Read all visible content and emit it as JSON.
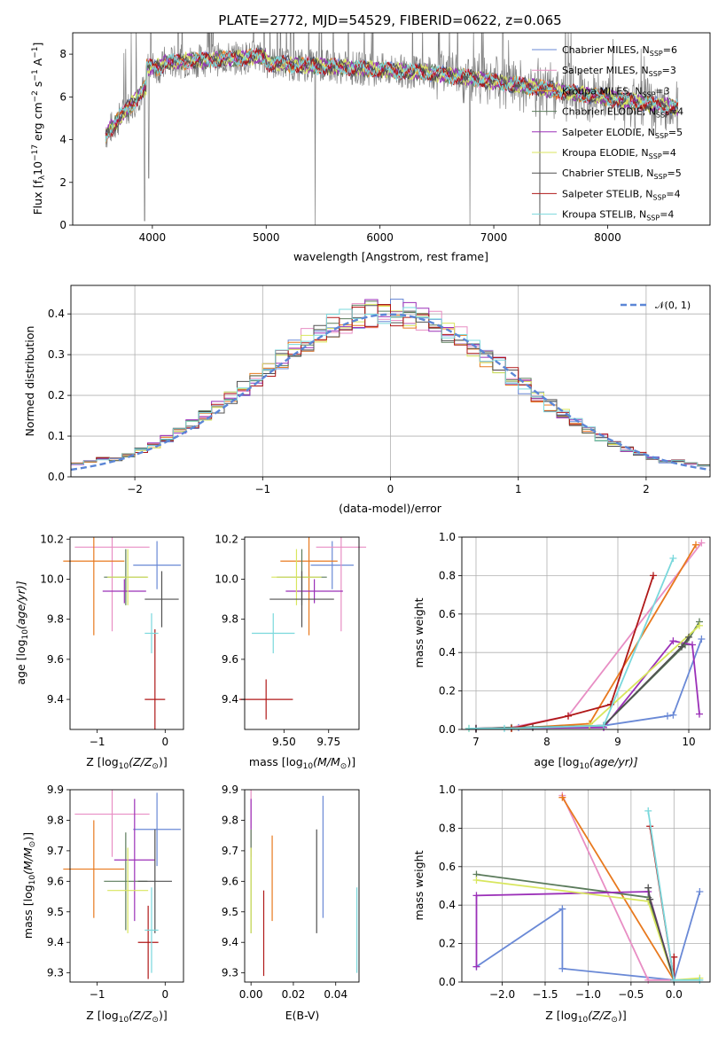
{
  "chart_data": [
    {
      "id": "spectrum",
      "type": "line",
      "title": "PLATE=2772, MJD=54529, FIBERID=0622, z=0.065",
      "xlabel": "wavelength [Angstrom, rest frame]",
      "ylabel": "Flux [f",
      "ylabel_rest": "10",
      "ylabel_exp1": "−17",
      "ylabel_unit": " erg cm",
      "ylabel_exp2": "−2",
      "ylabel_unit2": " s",
      "ylabel_exp3": "−1",
      "ylabel_unit3": " A",
      "ylabel_exp4": "−1",
      "ylabel_close": "]",
      "xlim": [
        3300,
        8900
      ],
      "ylim": [
        0,
        9
      ],
      "xticks": [
        "4000",
        "5000",
        "6000",
        "7000",
        "8000"
      ],
      "yticks": [
        "0",
        "2",
        "4",
        "6",
        "8"
      ],
      "observed_color": "#808080",
      "series": [
        {
          "name": "Chabrier MILES, N",
          "sub": "SSP",
          "n": "=6",
          "color": "#6a89d6"
        },
        {
          "name": "Salpeter MILES, N",
          "sub": "SSP",
          "n": "=3",
          "color": "#e88ec4"
        },
        {
          "name": "Kroupa MILES, N",
          "sub": "SSP",
          "n": "=3",
          "color": "#e8791e"
        },
        {
          "name": "Chabrier ELODIE, N",
          "sub": "SSP",
          "n": "=4",
          "color": "#5b7b5b"
        },
        {
          "name": "Salpeter ELODIE, N",
          "sub": "SSP",
          "n": "=5",
          "color": "#9b30b8"
        },
        {
          "name": "Kroupa ELODIE, N",
          "sub": "SSP",
          "n": "=4",
          "color": "#d8e65e"
        },
        {
          "name": "Chabrier STELIB, N",
          "sub": "SSP",
          "n": "=5",
          "color": "#505050"
        },
        {
          "name": "Salpeter STELIB, N",
          "sub": "SSP",
          "n": "=4",
          "color": "#b01818"
        },
        {
          "name": "Kroupa STELIB, N",
          "sub": "SSP",
          "n": "=4",
          "color": "#7ad8dc"
        }
      ]
    },
    {
      "id": "residuals",
      "type": "histogram",
      "xlabel": "(data-model)/error",
      "ylabel": "Normed distribution",
      "legend": "𝒩(0, 1)",
      "legend_placement": "top-right",
      "xlim": [
        -2.5,
        2.5
      ],
      "ylim": [
        0,
        0.47
      ],
      "xticks": [
        "−2",
        "−1",
        "0",
        "1",
        "2"
      ],
      "yticks": [
        "0.0",
        "0.1",
        "0.2",
        "0.3",
        "0.4"
      ],
      "gaussian": {
        "mu": 0,
        "sigma": 1,
        "color": "#5b86d6"
      },
      "grid": true
    },
    {
      "id": "age-vs-Z",
      "type": "errorbar",
      "xlabel": "Z [log",
      "xlabel_sub": "10",
      "xlabel_rest": "(Z/Z",
      "xlabel_sun": "⊙",
      "xlabel_close": ")]",
      "ylabel": "age  [log",
      "ylabel_sub": "10",
      "ylabel_rest": "(age/yr)]",
      "xlim": [
        -1.4,
        0.27
      ],
      "ylim": [
        9.25,
        10.21
      ],
      "xticks": [
        "−1",
        "0"
      ],
      "yticks": [
        "9.4",
        "9.6",
        "9.8",
        "10.0",
        "10.2"
      ],
      "points": [
        {
          "x": -0.12,
          "xerr": 0.35,
          "y": 10.07,
          "yerr": 0.12,
          "color": "#6a89d6"
        },
        {
          "x": -0.78,
          "xerr": 0.55,
          "y": 10.16,
          "yerr": 0.42,
          "color": "#e88ec4"
        },
        {
          "x": -1.05,
          "xerr": 0.45,
          "y": 10.09,
          "yerr": 0.37,
          "color": "#e8791e"
        },
        {
          "x": -0.58,
          "xerr": 0.32,
          "y": 10.01,
          "yerr": 0.14,
          "color": "#5b7b5b"
        },
        {
          "x": -0.6,
          "xerr": 0.32,
          "y": 9.94,
          "yerr": 0.06,
          "color": "#9b30b8"
        },
        {
          "x": -0.55,
          "xerr": 0.3,
          "y": 10.01,
          "yerr": 0.14,
          "color": "#d8e65e"
        },
        {
          "x": -0.05,
          "xerr": 0.25,
          "y": 9.9,
          "yerr": 0.14,
          "color": "#505050"
        },
        {
          "x": -0.15,
          "xerr": 0.15,
          "y": 9.4,
          "yerr": 0.35,
          "color": "#b01818"
        },
        {
          "x": -0.2,
          "xerr": 0.1,
          "y": 9.73,
          "yerr": 0.1,
          "color": "#7ad8dc"
        }
      ]
    },
    {
      "id": "age-vs-mass",
      "type": "errorbar",
      "xlabel": "mass [log",
      "xlabel_sub": "10",
      "xlabel_rest": "(M/M",
      "xlabel_sun": "⊙",
      "xlabel_close": ")]",
      "xlim": [
        9.28,
        9.92
      ],
      "ylim": [
        9.25,
        10.21
      ],
      "xticks": [
        "9.50",
        "9.75"
      ],
      "yticks": [
        "9.4",
        "9.6",
        "9.8",
        "10.0",
        "10.2"
      ],
      "points": [
        {
          "x": 9.77,
          "xerr": 0.12,
          "y": 10.07,
          "yerr": 0.12,
          "color": "#6a89d6"
        },
        {
          "x": 9.82,
          "xerr": 0.14,
          "y": 10.16,
          "yerr": 0.42,
          "color": "#e88ec4"
        },
        {
          "x": 9.64,
          "xerr": 0.16,
          "y": 10.09,
          "yerr": 0.37,
          "color": "#e8791e"
        },
        {
          "x": 9.6,
          "xerr": 0.14,
          "y": 10.01,
          "yerr": 0.14,
          "color": "#5b7b5b"
        },
        {
          "x": 9.67,
          "xerr": 0.16,
          "y": 9.94,
          "yerr": 0.06,
          "color": "#9b30b8"
        },
        {
          "x": 9.57,
          "xerr": 0.14,
          "y": 10.01,
          "yerr": 0.14,
          "color": "#d8e65e"
        },
        {
          "x": 9.6,
          "xerr": 0.18,
          "y": 9.9,
          "yerr": 0.14,
          "color": "#505050"
        },
        {
          "x": 9.4,
          "xerr": 0.15,
          "y": 9.4,
          "yerr": 0.1,
          "color": "#b01818"
        },
        {
          "x": 9.44,
          "xerr": 0.12,
          "y": 9.73,
          "yerr": 0.1,
          "color": "#7ad8dc"
        }
      ]
    },
    {
      "id": "weight-vs-age",
      "type": "line",
      "xlabel": "age  [log",
      "xlabel_sub": "10",
      "xlabel_rest": "(age/yr)]",
      "ylabel": "mass weight",
      "xlim": [
        6.8,
        10.3
      ],
      "ylim": [
        0,
        1
      ],
      "xticks": [
        "7",
        "8",
        "9",
        "10"
      ],
      "yticks": [
        "0.0",
        "0.2",
        "0.4",
        "0.6",
        "0.8",
        "1.0"
      ],
      "grid": true,
      "series": [
        {
          "color": "#6a89d6",
          "x": [
            7.0,
            7.6,
            8.8,
            9.7,
            9.78,
            10.18
          ],
          "y": [
            0.005,
            0.01,
            0.02,
            0.07,
            0.075,
            0.47
          ]
        },
        {
          "color": "#e88ec4",
          "x": [
            7.0,
            7.5,
            8.3,
            10.18
          ],
          "y": [
            0.005,
            0.01,
            0.07,
            0.97
          ]
        },
        {
          "color": "#e8791e",
          "x": [
            7.0,
            7.5,
            8.6,
            10.1
          ],
          "y": [
            0.005,
            0.005,
            0.03,
            0.96
          ]
        },
        {
          "color": "#5b7b5b",
          "x": [
            7.0,
            7.5,
            8.8,
            9.95,
            10.15
          ],
          "y": [
            0.005,
            0.01,
            0.02,
            0.44,
            0.56
          ]
        },
        {
          "color": "#9b30b8",
          "x": [
            7.0,
            8.8,
            9.78,
            10.05,
            10.15
          ],
          "y": [
            0.005,
            0.01,
            0.46,
            0.44,
            0.08
          ]
        },
        {
          "color": "#d8e65e",
          "x": [
            6.9,
            7.5,
            8.6,
            10.15
          ],
          "y": [
            0.005,
            0.005,
            0.02,
            0.54
          ]
        },
        {
          "color": "#505050",
          "x": [
            7.0,
            7.8,
            8.8,
            9.9,
            10.0
          ],
          "y": [
            0.005,
            0.01,
            0.02,
            0.43,
            0.48
          ]
        },
        {
          "color": "#b01818",
          "x": [
            7.5,
            8.3,
            8.9,
            9.5
          ],
          "y": [
            0.005,
            0.07,
            0.13,
            0.8
          ]
        },
        {
          "color": "#7ad8dc",
          "x": [
            6.9,
            7.4,
            8.8,
            9.78
          ],
          "y": [
            0.005,
            0.005,
            0.02,
            0.89
          ]
        }
      ]
    },
    {
      "id": "mass-vs-Z",
      "type": "errorbar",
      "xlabel": "Z [log",
      "xlabel_sub": "10",
      "xlabel_rest": "(Z/Z",
      "xlabel_sun": "⊙",
      "xlabel_close": ")]",
      "ylabel": "mass [log",
      "ylabel_sub": "10",
      "ylabel_rest": "(M/M",
      "ylabel_sun": "⊙",
      "ylabel_close": ")]",
      "xlim": [
        -1.4,
        0.27
      ],
      "ylim": [
        9.27,
        9.9
      ],
      "xticks": [
        "−1",
        "0"
      ],
      "yticks": [
        "9.3",
        "9.4",
        "9.5",
        "9.6",
        "9.7",
        "9.8",
        "9.9"
      ],
      "points": [
        {
          "x": -0.12,
          "xerr": 0.35,
          "y": 9.77,
          "yerr": 0.12,
          "color": "#6a89d6"
        },
        {
          "x": -0.78,
          "xerr": 0.55,
          "y": 9.82,
          "yerr": 0.14,
          "color": "#e88ec4"
        },
        {
          "x": -1.05,
          "xerr": 0.45,
          "y": 9.64,
          "yerr": 0.16,
          "color": "#e8791e"
        },
        {
          "x": -0.58,
          "xerr": 0.32,
          "y": 9.6,
          "yerr": 0.16,
          "color": "#5b7b5b"
        },
        {
          "x": -0.45,
          "xerr": 0.3,
          "y": 9.67,
          "yerr": 0.2,
          "color": "#9b30b8"
        },
        {
          "x": -0.55,
          "xerr": 0.3,
          "y": 9.57,
          "yerr": 0.14,
          "color": "#d8e65e"
        },
        {
          "x": -0.15,
          "xerr": 0.25,
          "y": 9.6,
          "yerr": 0.17,
          "color": "#505050"
        },
        {
          "x": -0.25,
          "xerr": 0.15,
          "y": 9.4,
          "yerr": 0.12,
          "color": "#b01818"
        },
        {
          "x": -0.2,
          "xerr": 0.1,
          "y": 9.44,
          "yerr": 0.14,
          "color": "#7ad8dc"
        }
      ]
    },
    {
      "id": "mass-vs-EBV",
      "type": "errorbar",
      "xlabel": "E(B-V)",
      "xlim": [
        -0.003,
        0.051
      ],
      "ylim": [
        9.27,
        9.9
      ],
      "xticks": [
        "0.00",
        "0.02",
        "0.04"
      ],
      "yticks": [
        "9.3",
        "9.4",
        "9.5",
        "9.6",
        "9.7",
        "9.8",
        "9.9"
      ],
      "points": [
        {
          "x": 0.034,
          "y": 9.68,
          "yerr": 0.2,
          "color": "#6a89d6"
        },
        {
          "x": 0.0,
          "y": 9.82,
          "yerr": 0.14,
          "color": "#e88ec4"
        },
        {
          "x": 0.01,
          "y": 9.61,
          "yerr": 0.14,
          "color": "#e8791e"
        },
        {
          "x": 0.0,
          "y": 9.6,
          "yerr": 0.17,
          "color": "#5b7b5b"
        },
        {
          "x": 0.0,
          "y": 9.82,
          "yerr": 0.05,
          "color": "#9b30b8"
        },
        {
          "x": 0.0,
          "y": 9.57,
          "yerr": 0.14,
          "color": "#d8e65e"
        },
        {
          "x": 0.031,
          "y": 9.6,
          "yerr": 0.17,
          "color": "#505050"
        },
        {
          "x": 0.006,
          "y": 9.43,
          "yerr": 0.14,
          "color": "#b01818"
        },
        {
          "x": 0.05,
          "y": 9.44,
          "yerr": 0.14,
          "color": "#7ad8dc"
        }
      ]
    },
    {
      "id": "weight-vs-Z",
      "type": "line",
      "xlabel": "Z [log",
      "xlabel_sub": "10",
      "xlabel_rest": "(Z/Z",
      "xlabel_sun": "⊙",
      "xlabel_close": ")]",
      "ylabel": "mass weight",
      "xlim": [
        -2.47,
        0.42
      ],
      "ylim": [
        0,
        1
      ],
      "xticks": [
        "−2.0",
        "−1.5",
        "−1.0",
        "−0.5",
        "0.0"
      ],
      "yticks": [
        "0.0",
        "0.2",
        "0.4",
        "0.6",
        "0.8",
        "1.0"
      ],
      "grid": true,
      "series": [
        {
          "color": "#6a89d6",
          "x": [
            -2.3,
            -1.3,
            -1.3,
            0.0,
            0.3
          ],
          "y": [
            0.08,
            0.38,
            0.07,
            0.01,
            0.47
          ]
        },
        {
          "color": "#e88ec4",
          "x": [
            -1.3,
            -0.3,
            0.0
          ],
          "y": [
            0.97,
            0.01,
            0.01
          ]
        },
        {
          "color": "#e8791e",
          "x": [
            -1.3,
            0.0
          ],
          "y": [
            0.96,
            0.01
          ]
        },
        {
          "color": "#5b7b5b",
          "x": [
            -2.3,
            -0.3,
            0.0
          ],
          "y": [
            0.56,
            0.44,
            0.01
          ]
        },
        {
          "color": "#9b30b8",
          "x": [
            -2.3,
            -2.3,
            -0.3,
            0.0
          ],
          "y": [
            0.08,
            0.45,
            0.47,
            0.01
          ]
        },
        {
          "color": "#d8e65e",
          "x": [
            -2.3,
            -0.3,
            0.0,
            0.3
          ],
          "y": [
            0.53,
            0.42,
            0.01,
            0.02
          ]
        },
        {
          "color": "#505050",
          "x": [
            -0.3,
            -0.28,
            0.0
          ],
          "y": [
            0.49,
            0.43,
            0.01
          ]
        },
        {
          "color": "#b01818",
          "x": [
            -0.28,
            0.0,
            0.0
          ],
          "y": [
            0.81,
            0.01,
            0.13
          ]
        },
        {
          "color": "#7ad8dc",
          "x": [
            -0.3,
            0.0,
            0.3
          ],
          "y": [
            0.89,
            0.01,
            0.01
          ]
        }
      ]
    }
  ]
}
